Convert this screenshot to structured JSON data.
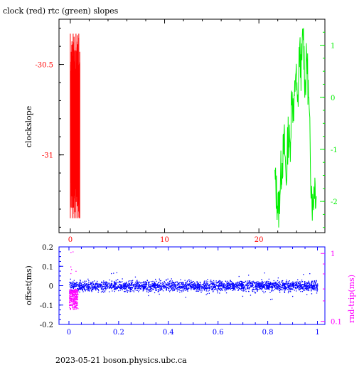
{
  "title": "clock (red) rtc (green) slopes",
  "footer": "2023-05-21 boson.physics.ubc.ca",
  "colors": {
    "clock": "#ff0000",
    "rtc": "#00ee00",
    "offset": "#0000ff",
    "rndtrip": "#ff00ff",
    "axes": "#000000"
  },
  "chart_data": [
    {
      "type": "line",
      "title": "clock (red) rtc (green) slopes",
      "ylabel": "clockslope",
      "xlim": [
        -1.2,
        27
      ],
      "ylim": [
        -31.43,
        -30.25
      ],
      "x_ticks": [
        "0",
        "10",
        "20"
      ],
      "x_tick_values": [
        0,
        10,
        20
      ],
      "y_left_ticks": [
        "-30.5",
        "-31"
      ],
      "y_left_tick_values": [
        -30.5,
        -31
      ],
      "y_right_ticks": [
        "1",
        "0",
        "-1",
        "-2"
      ],
      "y_right_tick_values": [
        1,
        0,
        -1,
        -2
      ],
      "y_right_lim": [
        -2.6,
        1.5
      ],
      "grid": false,
      "series": [
        {
          "axis": "left",
          "x_range": [
            0,
            1.0
          ],
          "y_min": -31.35,
          "y_max": -30.33,
          "x": [
            0.0,
            0.1,
            0.2,
            0.3,
            0.4,
            0.5,
            0.6,
            0.7,
            0.8,
            0.9,
            1.0
          ],
          "y": [
            -31.2,
            -30.45,
            -31.28,
            -30.38,
            -31.25,
            -30.55,
            -31.32,
            -30.4,
            -31.22,
            -30.5,
            -31.1
          ]
        },
        {
          "axis": "right",
          "x_range": [
            21.7,
            26.1
          ],
          "x": [
            21.7,
            21.9,
            22.1,
            22.3,
            22.5,
            22.7,
            22.9,
            23.1,
            23.3,
            23.5,
            23.7,
            23.9,
            24.1,
            24.3,
            24.5,
            24.7,
            24.9,
            25.1,
            25.3,
            25.5,
            25.7,
            25.9,
            26.1
          ],
          "y": [
            -1.6,
            -1.9,
            -2.2,
            -1.5,
            -1.2,
            -0.9,
            -1.6,
            -0.7,
            -1.0,
            0.2,
            -0.5,
            0.6,
            -0.3,
            0.9,
            0.5,
            1.3,
            0.2,
            0.8,
            -0.2,
            -1.4,
            -2.1,
            -1.6,
            -1.9
          ]
        }
      ]
    },
    {
      "type": "scatter",
      "ylabel": "offset(ms)",
      "ylabel_right": "rnd-trip(ms)",
      "xlim": [
        -0.04,
        1.03
      ],
      "ylim": [
        -0.2,
        0.2
      ],
      "x_ticks": [
        "0",
        "0.2",
        "0.4",
        "0.6",
        "0.8",
        "1"
      ],
      "x_tick_values": [
        0,
        0.2,
        0.4,
        0.6,
        0.8,
        1
      ],
      "y_left_ticks": [
        "0.2",
        "0.1",
        "0",
        "-0.1",
        "-0.2"
      ],
      "y_left_tick_values": [
        0.2,
        0.1,
        0,
        -0.1,
        -0.2
      ],
      "y_right_ticks": [
        "1",
        "0.1"
      ],
      "y_right_tick_values": [
        1,
        0.1
      ],
      "y_right_lim": [
        0.09,
        1.25
      ],
      "y_right_scale": "log",
      "grid": false,
      "series": [
        {
          "axis": "left",
          "x_range": [
            0,
            1
          ],
          "y_center": 0,
          "y_spread": 0.03
        },
        {
          "axis": "right",
          "x_range": [
            0,
            0.035
          ],
          "y_range": [
            0.15,
            0.3
          ]
        }
      ]
    }
  ]
}
